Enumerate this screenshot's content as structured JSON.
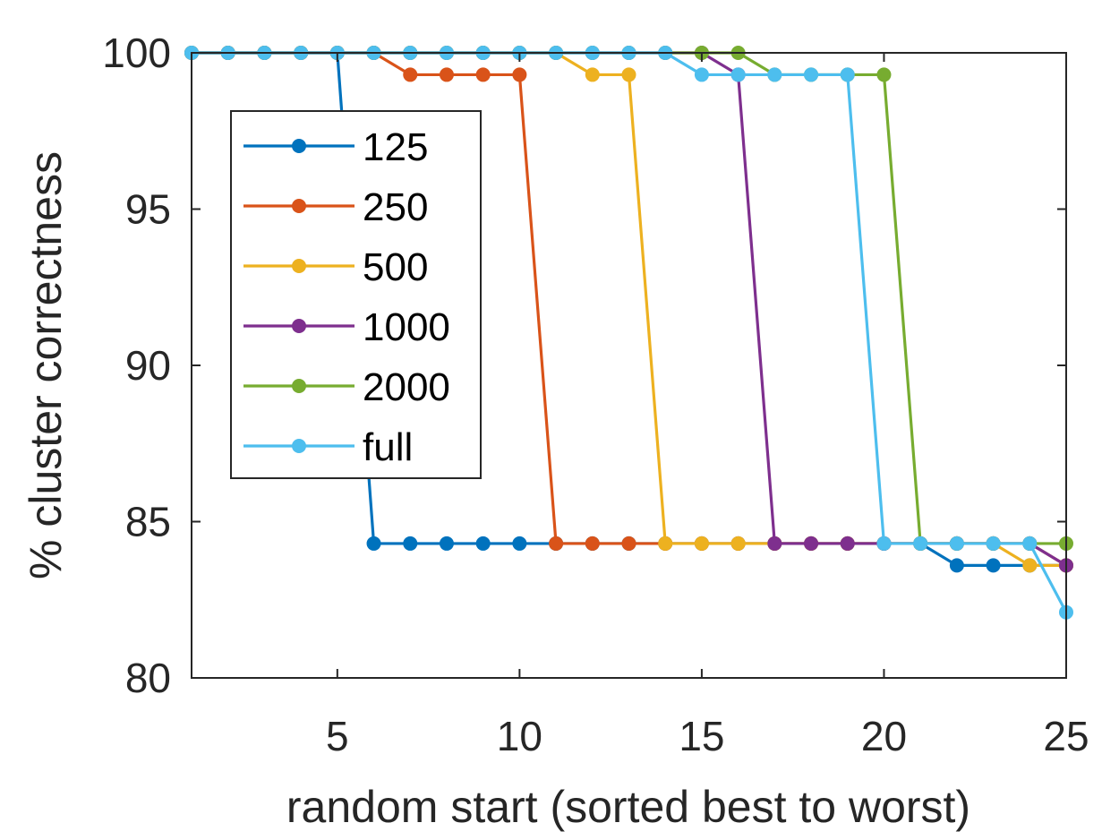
{
  "chart_data": {
    "type": "line",
    "xlabel": "random start (sorted best to worst)",
    "ylabel": "% cluster correctness",
    "xlim": [
      1,
      25
    ],
    "ylim": [
      80,
      100
    ],
    "xticks": [
      5,
      10,
      15,
      20,
      25
    ],
    "yticks": [
      80,
      85,
      90,
      95,
      100
    ],
    "grid": false,
    "legend_position": "upper-left",
    "x": [
      1,
      2,
      3,
      4,
      5,
      6,
      7,
      8,
      9,
      10,
      11,
      12,
      13,
      14,
      15,
      16,
      17,
      18,
      19,
      20,
      21,
      22,
      23,
      24,
      25
    ],
    "series": [
      {
        "name": "125",
        "color": "#0072BD",
        "values": [
          100,
          100,
          100,
          100,
          100,
          84.3,
          84.3,
          84.3,
          84.3,
          84.3,
          84.3,
          84.3,
          84.3,
          84.3,
          84.3,
          84.3,
          84.3,
          84.3,
          84.3,
          84.3,
          84.3,
          83.6,
          83.6,
          83.6,
          83.6
        ]
      },
      {
        "name": "250",
        "color": "#D95319",
        "values": [
          100,
          100,
          100,
          100,
          100,
          100,
          99.3,
          99.3,
          99.3,
          99.3,
          84.3,
          84.3,
          84.3,
          84.3,
          84.3,
          84.3,
          84.3,
          84.3,
          84.3,
          84.3,
          84.3,
          84.3,
          84.3,
          84.3,
          83.6
        ]
      },
      {
        "name": "500",
        "color": "#EDB120",
        "values": [
          100,
          100,
          100,
          100,
          100,
          100,
          100,
          100,
          100,
          100,
          100,
          99.3,
          99.3,
          84.3,
          84.3,
          84.3,
          84.3,
          84.3,
          84.3,
          84.3,
          84.3,
          84.3,
          84.3,
          83.6,
          83.6
        ]
      },
      {
        "name": "1000",
        "color": "#7E2F8E",
        "values": [
          100,
          100,
          100,
          100,
          100,
          100,
          100,
          100,
          100,
          100,
          100,
          100,
          100,
          100,
          100,
          99.3,
          84.3,
          84.3,
          84.3,
          84.3,
          84.3,
          84.3,
          84.3,
          84.3,
          83.6
        ]
      },
      {
        "name": "2000",
        "color": "#77AC30",
        "values": [
          100,
          100,
          100,
          100,
          100,
          100,
          100,
          100,
          100,
          100,
          100,
          100,
          100,
          100,
          100,
          100,
          99.3,
          99.3,
          99.3,
          99.3,
          84.3,
          84.3,
          84.3,
          84.3,
          84.3
        ]
      },
      {
        "name": "full",
        "color": "#4DBEEE",
        "values": [
          100,
          100,
          100,
          100,
          100,
          100,
          100,
          100,
          100,
          100,
          100,
          100,
          100,
          100,
          99.3,
          99.3,
          99.3,
          99.3,
          99.3,
          84.3,
          84.3,
          84.3,
          84.3,
          84.3,
          82.1
        ]
      }
    ]
  }
}
